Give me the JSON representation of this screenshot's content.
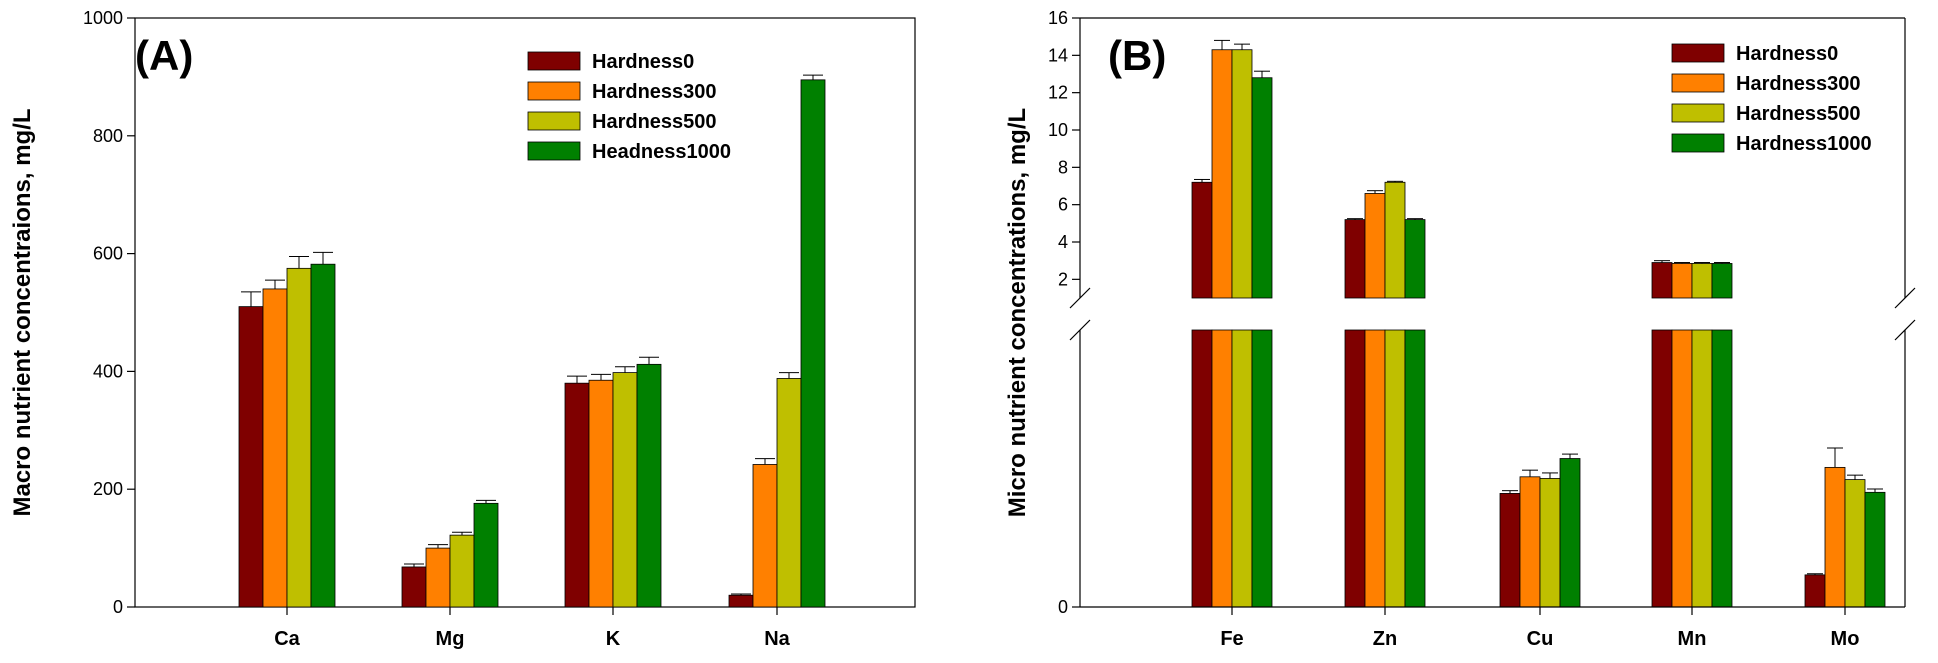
{
  "colors": {
    "hardness0": "#7f0000",
    "hardness300": "#ff8000",
    "hardness500": "#bfbf00",
    "hardness1000": "#008000"
  },
  "chart_data": [
    {
      "type": "bar",
      "panel": "(A)",
      "ylabel": "Macro nutrient concentraions, mg/L",
      "xlabel": "",
      "ylim": [
        0,
        1000
      ],
      "yticks": [
        "0",
        "200",
        "400",
        "600",
        "800",
        "1000"
      ],
      "categories": [
        "Ca",
        "Mg",
        "K",
        "Na"
      ],
      "legend_position": "top-right",
      "series": [
        {
          "name": "Hardness0",
          "color_key": "hardness0",
          "values": [
            510,
            68,
            380,
            20
          ],
          "errors": [
            25,
            5,
            12,
            2
          ]
        },
        {
          "name": "Hardness300",
          "color_key": "hardness300",
          "values": [
            540,
            100,
            385,
            242
          ],
          "errors": [
            15,
            6,
            10,
            10
          ]
        },
        {
          "name": "Hardness500",
          "color_key": "hardness500",
          "values": [
            575,
            122,
            398,
            388
          ],
          "errors": [
            20,
            5,
            10,
            10
          ]
        },
        {
          "name": "Headness1000",
          "color_key": "hardness1000",
          "values": [
            582,
            176,
            412,
            895
          ],
          "errors": [
            20,
            5,
            12,
            8
          ]
        }
      ]
    },
    {
      "type": "bar",
      "panel": "(B)",
      "ylabel": "Micro nutrient concentrations, mg/L",
      "xlabel": "",
      "broken_axis": true,
      "upper_ylim": [
        1,
        16
      ],
      "upper_yticks": [
        "2",
        "4",
        "6",
        "8",
        "10",
        "12",
        "14",
        "16"
      ],
      "lower_ylim": [
        0,
        0.5
      ],
      "lower_yticks": [
        "0"
      ],
      "categories": [
        "Fe",
        "Zn",
        "Cu",
        "Mn",
        "Mo"
      ],
      "legend_position": "top-right",
      "series": [
        {
          "name": "Hardness0",
          "color_key": "hardness0",
          "values": [
            7.2,
            5.2,
            0.205,
            2.9,
            0.058
          ],
          "errors": [
            0.15,
            0.05,
            0.005,
            0.1,
            0.002
          ]
        },
        {
          "name": "Hardness300",
          "color_key": "hardness300",
          "values": [
            14.3,
            6.6,
            0.235,
            2.85,
            0.252
          ],
          "errors": [
            0.5,
            0.15,
            0.012,
            0.05,
            0.035
          ]
        },
        {
          "name": "Hardness500",
          "color_key": "hardness500",
          "values": [
            14.3,
            7.2,
            0.232,
            2.85,
            0.23
          ],
          "errors": [
            0.3,
            0.05,
            0.01,
            0.05,
            0.008
          ]
        },
        {
          "name": "Hardness1000",
          "color_key": "hardness1000",
          "values": [
            12.8,
            5.2,
            0.268,
            2.85,
            0.207
          ],
          "errors": [
            0.35,
            0.05,
            0.008,
            0.05,
            0.006
          ]
        }
      ]
    }
  ]
}
